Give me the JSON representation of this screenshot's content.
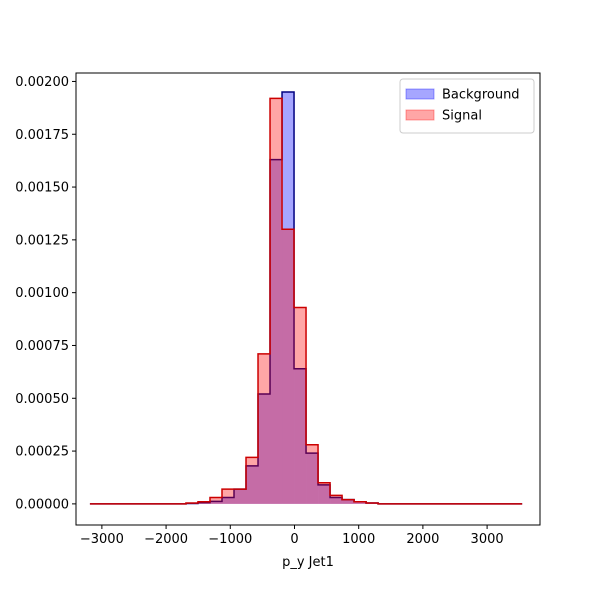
{
  "chart_data": {
    "type": "histogram",
    "xlabel": "p_y Jet1",
    "bins": [
      -3186,
      -2999,
      -2812,
      -2625,
      -2438,
      -2251,
      -2064,
      -1877,
      -1690,
      -1503,
      -1316,
      -1129,
      -942,
      -755,
      -568,
      -381,
      -194,
      -7,
      180,
      367,
      554,
      741,
      928,
      1115,
      1302,
      1489,
      1676,
      1863,
      2050,
      2237,
      2424,
      2611,
      2798,
      2985,
      3172,
      3359,
      3546
    ],
    "series": [
      {
        "name": "Background",
        "color": "#0000ff",
        "edgecolor": "#000080",
        "values": [
          0,
          0,
          0,
          0,
          0,
          0,
          0,
          0,
          2e-06,
          6e-06,
          1.2e-05,
          3e-05,
          7e-05,
          0.00018,
          0.00052,
          0.00163,
          0.00195,
          0.00064,
          0.00024,
          9e-05,
          3e-05,
          2e-05,
          1e-05,
          4e-06,
          0,
          0,
          0,
          0,
          0,
          0,
          0,
          0,
          0,
          0,
          0,
          0
        ]
      },
      {
        "name": "Signal",
        "color": "#ff0000",
        "edgecolor": "#cc0000",
        "values": [
          0,
          0,
          0,
          0,
          0,
          0,
          0,
          0,
          4e-06,
          1e-05,
          3e-05,
          7e-05,
          7e-05,
          0.00022,
          0.00071,
          0.00192,
          0.0013,
          0.00093,
          0.00028,
          0.0001,
          4e-05,
          2e-05,
          1e-05,
          4e-06,
          0,
          0,
          0,
          0,
          0,
          0,
          0,
          0,
          0,
          0,
          0,
          0
        ]
      }
    ],
    "xlim": [
      -3403,
      3824
    ],
    "ylim": [
      -0.0001,
      0.00204
    ],
    "xticks": [
      {
        "value": -3000,
        "label": "−3000"
      },
      {
        "value": -2000,
        "label": "−2000"
      },
      {
        "value": -1000,
        "label": "−1000"
      },
      0,
      1000,
      2000,
      3000
    ],
    "yticks": [
      {
        "value": 0,
        "label": "0.00000"
      },
      {
        "value": 0.00025,
        "label": "0.00025"
      },
      {
        "value": 0.0005,
        "label": "0.00050"
      },
      {
        "value": 0.00075,
        "label": "0.00075"
      },
      {
        "value": 0.001,
        "label": "0.00100"
      },
      {
        "value": 0.00125,
        "label": "0.00125"
      },
      {
        "value": 0.0015,
        "label": "0.00150"
      },
      {
        "value": 0.00175,
        "label": "0.00175"
      },
      {
        "value": 0.002,
        "label": "0.00200"
      }
    ],
    "legend": "upper right"
  }
}
